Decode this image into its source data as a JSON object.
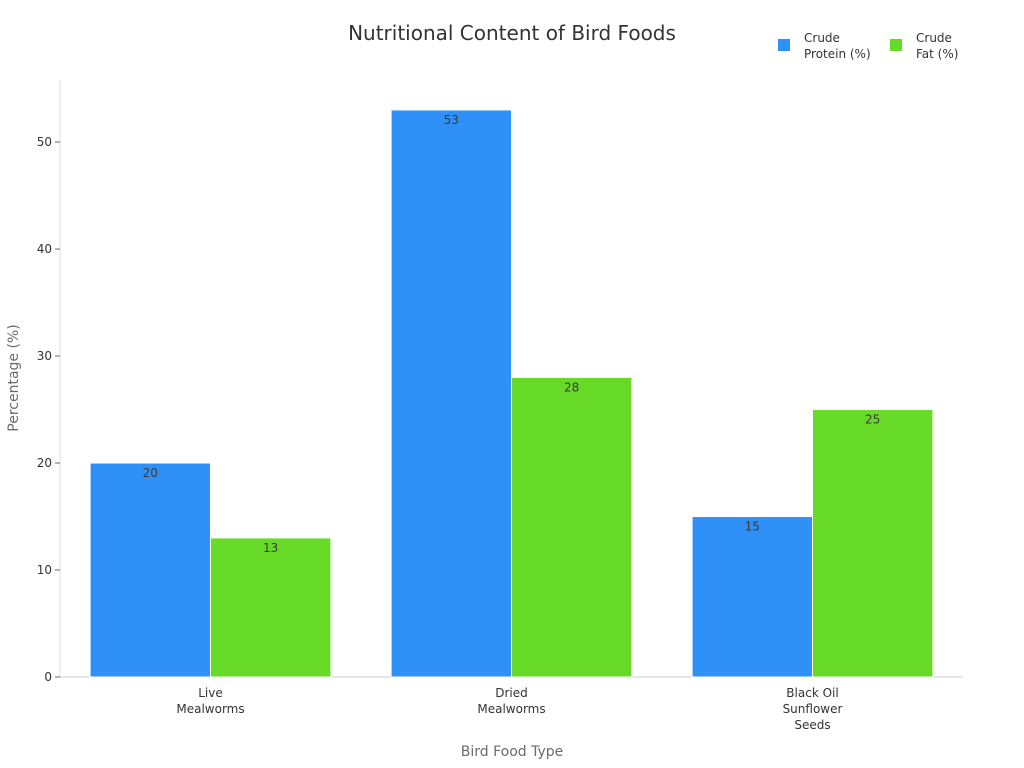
{
  "chart_data": {
    "type": "bar",
    "title": "Nutritional Content of Bird Foods",
    "xlabel": "Bird Food Type",
    "ylabel": "Percentage (%)",
    "categories": [
      "Live Mealworms",
      "Dried Mealworms",
      "Black Oil Sunflower Seeds"
    ],
    "category_lines": [
      [
        "Live",
        "Mealworms"
      ],
      [
        "Dried",
        "Mealworms"
      ],
      [
        "Black Oil",
        "Sunflower",
        "Seeds"
      ]
    ],
    "series": [
      {
        "name": "Crude Protein (%)",
        "name_lines": [
          "Crude",
          "Protein (%)"
        ],
        "color": "#2f90f7",
        "values": [
          20,
          53,
          15
        ]
      },
      {
        "name": "Crude Fat (%)",
        "name_lines": [
          "Crude",
          "Fat (%)"
        ],
        "color": "#66da26",
        "values": [
          13,
          28,
          25
        ]
      }
    ],
    "ylim": [
      0,
      55.8
    ],
    "yticks": [
      0,
      10,
      20,
      30,
      40,
      50
    ],
    "grid": false,
    "legend_position": "top-right",
    "data_labels": true
  }
}
